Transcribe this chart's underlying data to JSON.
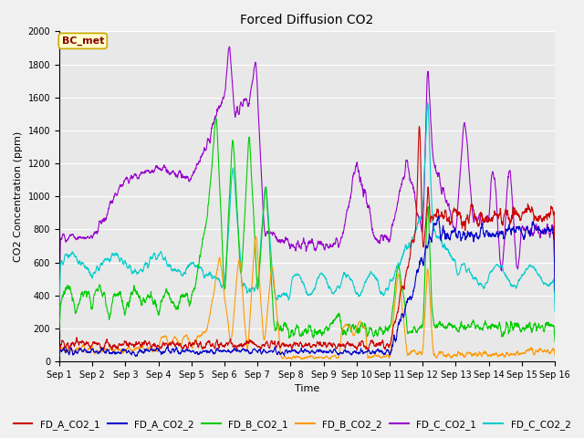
{
  "title": "Forced Diffusion CO2",
  "xlabel": "Time",
  "ylabel": "CO2 Concentration (ppm)",
  "ylim": [
    0,
    2000
  ],
  "x_tick_labels": [
    "Sep 1",
    "Sep 2",
    "Sep 3",
    "Sep 4",
    "Sep 5",
    "Sep 6",
    "Sep 7",
    "Sep 8",
    "Sep 9",
    "Sep 10",
    "Sep 11",
    "Sep 12",
    "Sep 13",
    "Sep 14",
    "Sep 15",
    "Sep 16"
  ],
  "series": {
    "FD_A_CO2_1": {
      "color": "#cc0000",
      "lw": 0.8
    },
    "FD_A_CO2_2": {
      "color": "#0000cc",
      "lw": 0.8
    },
    "FD_B_CO2_1": {
      "color": "#00cc00",
      "lw": 0.8
    },
    "FD_B_CO2_2": {
      "color": "#ff9900",
      "lw": 0.8
    },
    "FD_C_CO2_1": {
      "color": "#9900cc",
      "lw": 0.8
    },
    "FD_C_CO2_2": {
      "color": "#00cccc",
      "lw": 0.8
    }
  },
  "annotation_text": "BC_met",
  "annotation_fg": "#880000",
  "annotation_bg": "#ffffcc",
  "annotation_edge": "#ccaa00",
  "plot_bg_color": "#e8e8e8",
  "fig_bg_color": "#f0f0f0",
  "grid_color": "#ffffff",
  "title_fontsize": 10,
  "axis_label_fontsize": 8,
  "tick_fontsize": 7,
  "legend_fontsize": 7.5
}
